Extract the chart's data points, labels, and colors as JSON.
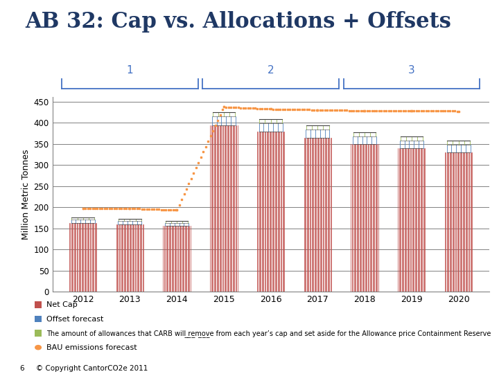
{
  "title": "AB 32: Cap vs. Allocations + Offsets",
  "title_fontsize": 22,
  "title_color": "#1F3864",
  "ylabel": "Million Metric Tonnes",
  "ylabel_fontsize": 9,
  "years": [
    2012,
    2013,
    2014,
    2015,
    2016,
    2017,
    2018,
    2019,
    2020
  ],
  "ylim": [
    0,
    460
  ],
  "yticks": [
    0,
    50,
    100,
    150,
    200,
    250,
    300,
    350,
    400,
    450
  ],
  "net_cap": [
    163,
    160,
    156,
    394,
    378,
    364,
    350,
    340,
    330
  ],
  "offset_forecast": [
    8,
    8,
    7,
    20,
    20,
    20,
    18,
    18,
    18
  ],
  "containment_reserve": [
    4,
    4,
    4,
    10,
    10,
    10,
    9,
    9,
    9
  ],
  "bau_emissions": [
    197,
    197,
    193,
    437,
    432,
    430,
    428,
    428,
    427
  ],
  "net_cap_color": "#C0504D",
  "offset_color": "#4F81BD",
  "containment_color": "#9BBB59",
  "bau_color": "#F79646",
  "grid_color": "#808080",
  "phase_color": "#4472C4",
  "bar_width": 0.6,
  "n_lines_per_bar": 30,
  "footer_text": "6     © Copyright CantorCO2e 2011"
}
